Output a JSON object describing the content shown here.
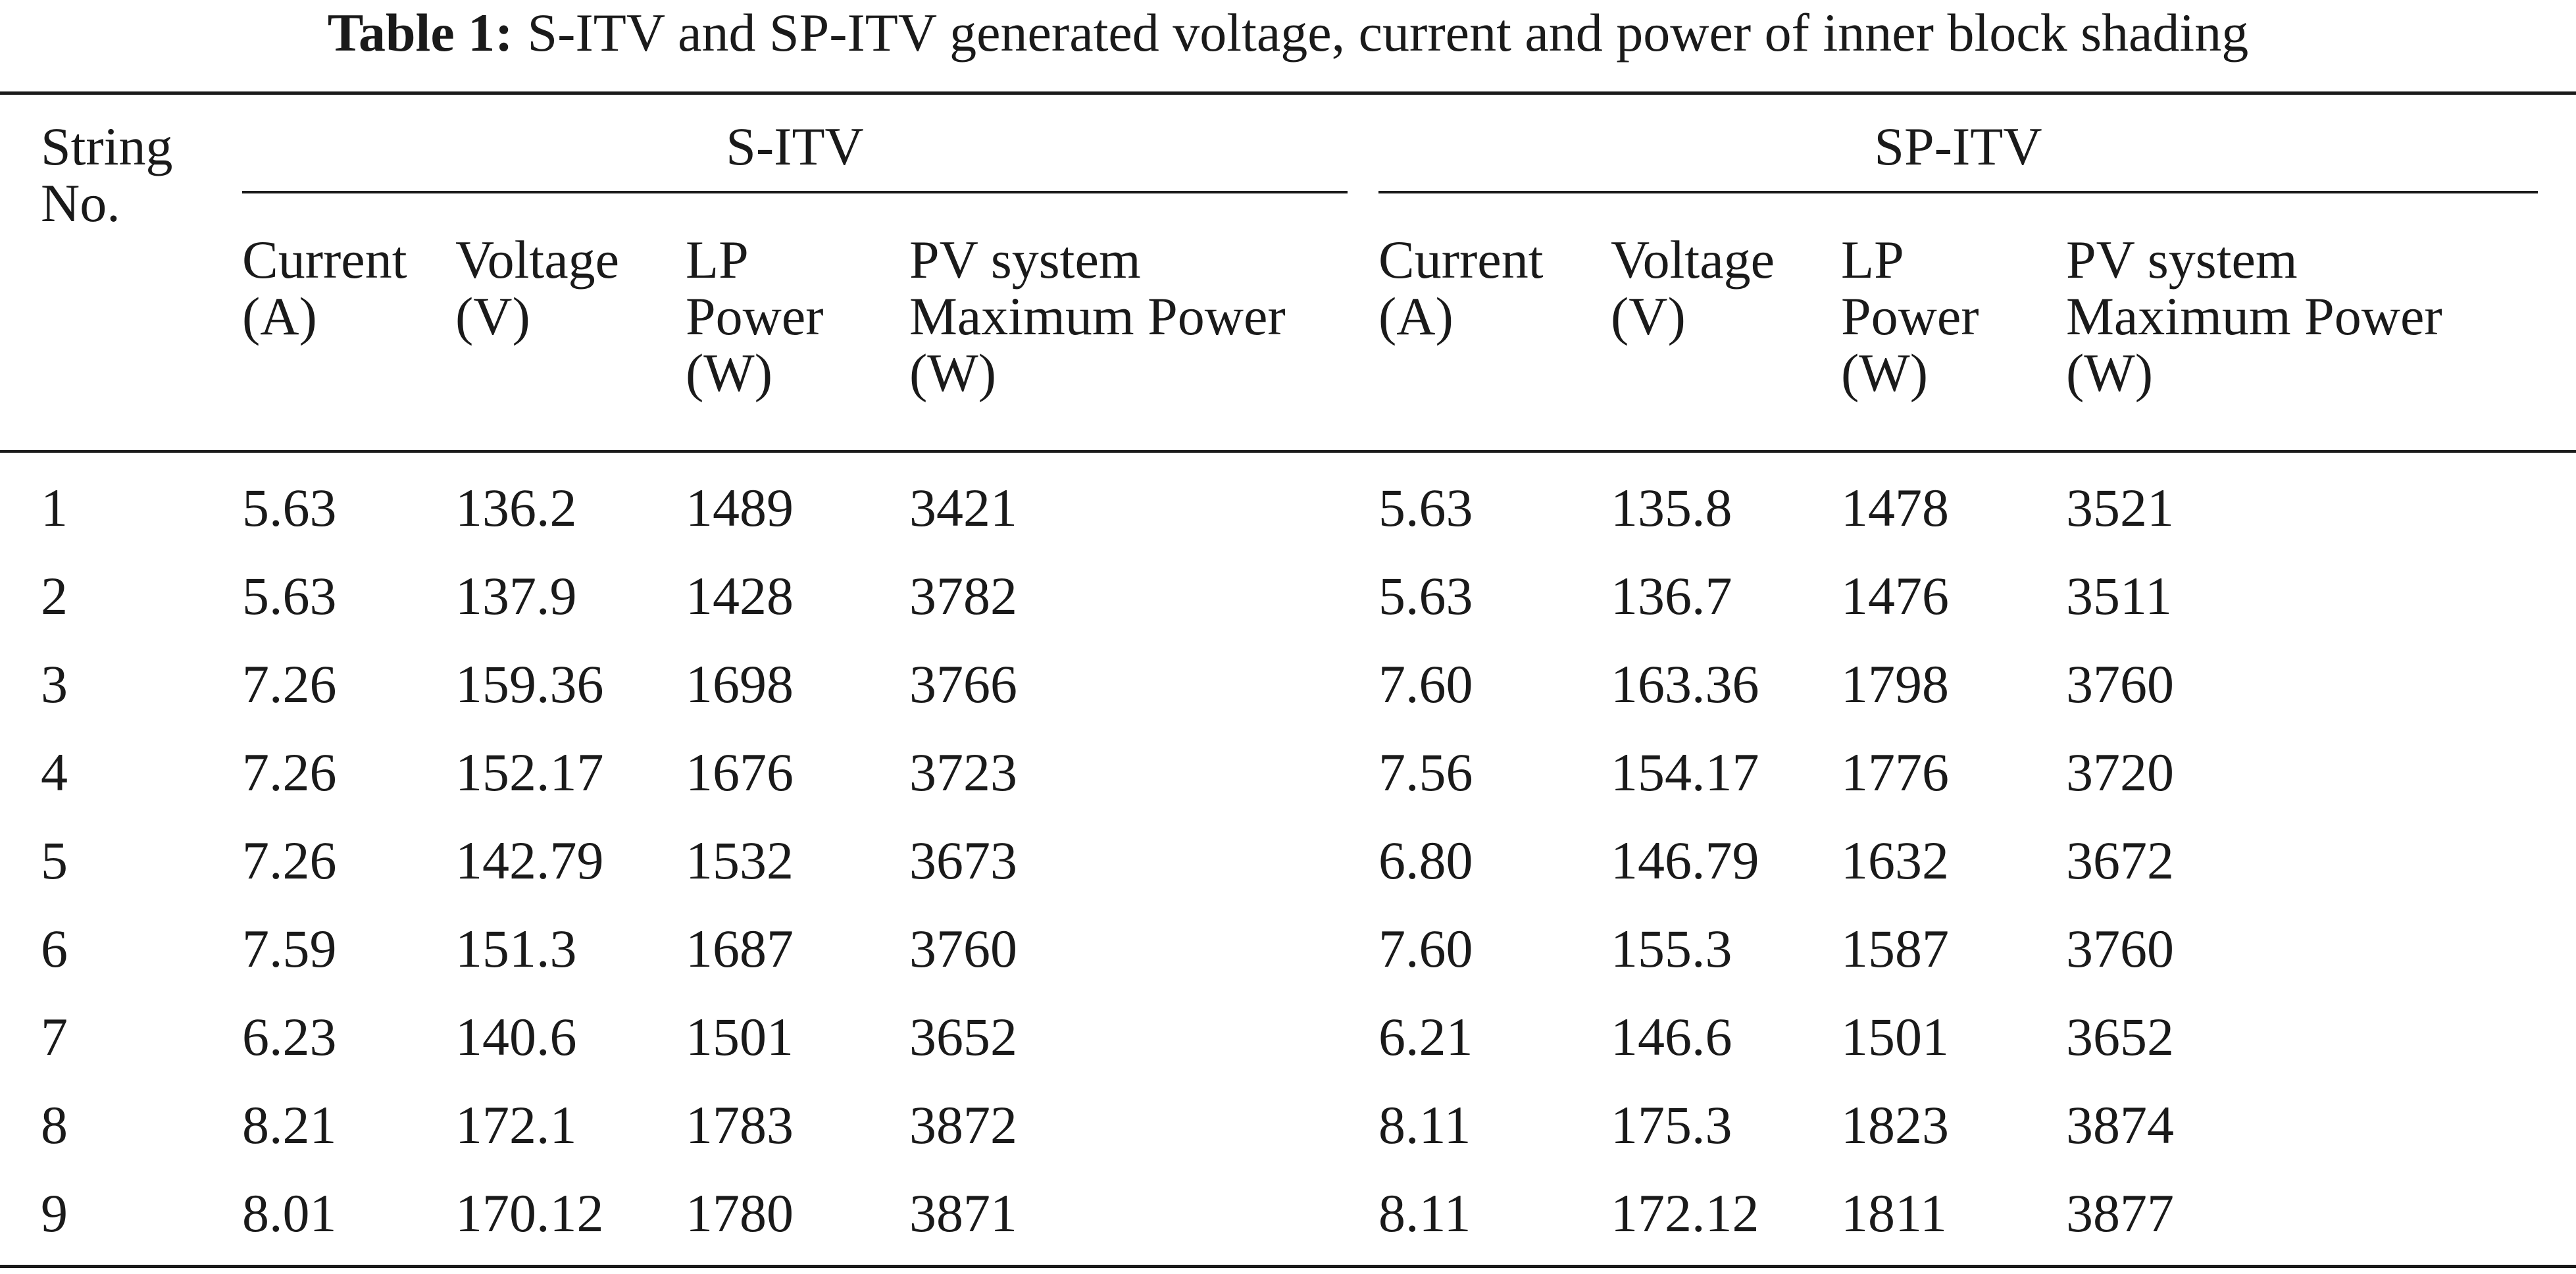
{
  "caption": {
    "label": "Table 1:",
    "text": "S-ITV and SP-ITV generated voltage, current and power of inner block shading"
  },
  "header": {
    "string_no": [
      "String",
      "No."
    ],
    "groups": [
      "S-ITV",
      "SP-ITV"
    ],
    "columns": [
      [
        "Current",
        "(A)"
      ],
      [
        "Voltage",
        "(V)"
      ],
      [
        "LP",
        "Power",
        "(W)"
      ],
      [
        "PV system",
        "Maximum Power",
        "(W)"
      ],
      [
        "Current",
        "(A)"
      ],
      [
        "Voltage",
        "(V)"
      ],
      [
        "LP",
        "Power",
        "(W)"
      ],
      [
        "PV system",
        "Maximum Power",
        "(W)"
      ]
    ]
  },
  "rows": [
    [
      "1",
      "5.63",
      "136.2",
      "1489",
      "3421",
      "5.63",
      "135.8",
      "1478",
      "3521"
    ],
    [
      "2",
      "5.63",
      "137.9",
      "1428",
      "3782",
      "5.63",
      "136.7",
      "1476",
      "3511"
    ],
    [
      "3",
      "7.26",
      "159.36",
      "1698",
      "3766",
      "7.60",
      "163.36",
      "1798",
      "3760"
    ],
    [
      "4",
      "7.26",
      "152.17",
      "1676",
      "3723",
      "7.56",
      "154.17",
      "1776",
      "3720"
    ],
    [
      "5",
      "7.26",
      "142.79",
      "1532",
      "3673",
      "6.80",
      "146.79",
      "1632",
      "3672"
    ],
    [
      "6",
      "7.59",
      "151.3",
      "1687",
      "3760",
      "7.60",
      "155.3",
      "1587",
      "3760"
    ],
    [
      "7",
      "6.23",
      "140.6",
      "1501",
      "3652",
      "6.21",
      "146.6",
      "1501",
      "3652"
    ],
    [
      "8",
      "8.21",
      "172.1",
      "1783",
      "3872",
      "8.11",
      "175.3",
      "1823",
      "3874"
    ],
    [
      "9",
      "8.01",
      "170.12",
      "1780",
      "3871",
      "8.11",
      "172.12",
      "1811",
      "3877"
    ]
  ]
}
